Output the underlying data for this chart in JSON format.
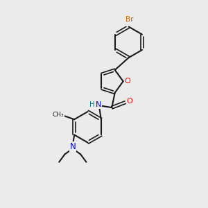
{
  "bg_color": "#ebebeb",
  "bond_color": "#1a1a1a",
  "oxygen_color": "#ff0000",
  "nitrogen_color": "#0000cc",
  "bromine_color": "#cc6600",
  "h_color": "#008080",
  "figsize": [
    3.0,
    3.0
  ],
  "dpi": 100,
  "xlim": [
    0,
    10
  ],
  "ylim": [
    0,
    10
  ]
}
